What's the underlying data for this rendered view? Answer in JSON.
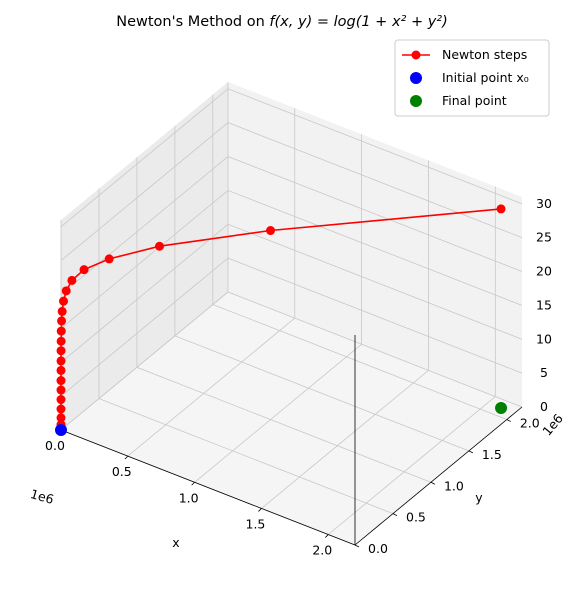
{
  "title": {
    "prefix": "Newton's Method on ",
    "math": "f(x, y) = log(1 + x² + y²)"
  },
  "legend": {
    "placement": "upper-right",
    "newton_steps": "Newton steps",
    "initial_point": "Initial point x₀",
    "final_point": "Final point"
  },
  "colors": {
    "steps": "#ff0000",
    "initial": "#0000ff",
    "final": "#008000",
    "pane_back": "#f2f2f2",
    "pane_side": "#ebebeb",
    "pane_floor": "#f5f5f5",
    "grid": "#c8c8c8"
  },
  "chart_data": {
    "type": "line",
    "projection": "3d",
    "xlabel": "x",
    "ylabel": "y",
    "zlabel": "",
    "x_offset_label": "1e6",
    "y_offset_label": "1e6",
    "xlim": [
      0,
      2200000
    ],
    "ylim": [
      0,
      2200000
    ],
    "zlim": [
      0,
      31
    ],
    "x_ticks": [
      "0.0",
      "0.5",
      "1.0",
      "1.5",
      "2.0"
    ],
    "y_ticks": [
      "0.0",
      "0.5",
      "1.0",
      "1.5",
      "2.0"
    ],
    "z_ticks": [
      "0",
      "5",
      "10",
      "15",
      "20",
      "25",
      "30"
    ],
    "grid": true,
    "series": [
      {
        "name": "Newton steps",
        "marker": "circle",
        "points": [
          {
            "x": 2100000,
            "y": 2100000,
            "z": 29.4
          },
          {
            "x": 1000000,
            "y": 1000000,
            "z": 27.9
          },
          {
            "x": 470000,
            "y": 470000,
            "z": 26.4
          },
          {
            "x": 230000,
            "y": 230000,
            "z": 24.9
          },
          {
            "x": 110000,
            "y": 110000,
            "z": 23.5
          },
          {
            "x": 52000,
            "y": 52000,
            "z": 22.0
          },
          {
            "x": 25000,
            "y": 25000,
            "z": 20.5
          },
          {
            "x": 12000,
            "y": 12000,
            "z": 19.0
          },
          {
            "x": 5600,
            "y": 5600,
            "z": 17.5
          },
          {
            "x": 2700,
            "y": 2700,
            "z": 16.1
          },
          {
            "x": 1300,
            "y": 1300,
            "z": 14.6
          },
          {
            "x": 600,
            "y": 600,
            "z": 13.1
          },
          {
            "x": 290,
            "y": 290,
            "z": 11.7
          },
          {
            "x": 140,
            "y": 140,
            "z": 10.2
          },
          {
            "x": 65,
            "y": 65,
            "z": 8.8
          },
          {
            "x": 31,
            "y": 31,
            "z": 7.3
          },
          {
            "x": 15,
            "y": 15,
            "z": 5.9
          },
          {
            "x": 7,
            "y": 7,
            "z": 4.5
          },
          {
            "x": 3.3,
            "y": 3.3,
            "z": 3.1
          },
          {
            "x": 1.6,
            "y": 1.6,
            "z": 1.8
          },
          {
            "x": 0.8,
            "y": 0.8,
            "z": 0.8
          }
        ]
      },
      {
        "name": "Initial point x₀",
        "marker": "circle",
        "points": [
          {
            "x": 1,
            "y": 1,
            "z": 0
          }
        ]
      },
      {
        "name": "Final point",
        "marker": "circle",
        "points": [
          {
            "x": 2100000,
            "y": 2100000,
            "z": 0
          }
        ]
      }
    ]
  }
}
